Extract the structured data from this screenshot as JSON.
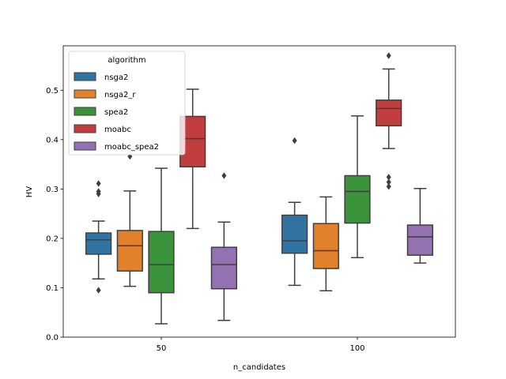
{
  "chart_data": {
    "type": "box",
    "xlabel": "n_candidates",
    "ylabel": "HV",
    "ylim": [
      0.0,
      0.59
    ],
    "yticks": [
      "0.0",
      "0.1",
      "0.2",
      "0.3",
      "0.4",
      "0.5"
    ],
    "categories": [
      "50",
      "100"
    ],
    "legend": {
      "title": "algorithm",
      "placement": "upper-left"
    },
    "series": [
      {
        "name": "nsga2",
        "color": "#3274a1",
        "boxes": [
          {
            "whislo": 0.118,
            "q1": 0.168,
            "med": 0.197,
            "q3": 0.211,
            "whishi": 0.235,
            "fliers": [
              0.311,
              0.295,
              0.29,
              0.095
            ]
          },
          {
            "whislo": 0.105,
            "q1": 0.17,
            "med": 0.195,
            "q3": 0.247,
            "whishi": 0.273,
            "fliers": [
              0.398
            ]
          }
        ]
      },
      {
        "name": "nsga2_r",
        "color": "#e1812c",
        "boxes": [
          {
            "whislo": 0.103,
            "q1": 0.134,
            "med": 0.185,
            "q3": 0.216,
            "whishi": 0.296,
            "fliers": [
              0.366
            ]
          },
          {
            "whislo": 0.094,
            "q1": 0.139,
            "med": 0.175,
            "q3": 0.23,
            "whishi": 0.284,
            "fliers": []
          }
        ]
      },
      {
        "name": "spea2",
        "color": "#3a923a",
        "boxes": [
          {
            "whislo": 0.027,
            "q1": 0.09,
            "med": 0.147,
            "q3": 0.214,
            "whishi": 0.342,
            "fliers": []
          },
          {
            "whislo": 0.161,
            "q1": 0.231,
            "med": 0.295,
            "q3": 0.327,
            "whishi": 0.448,
            "fliers": []
          }
        ]
      },
      {
        "name": "moabc",
        "color": "#c03d3e",
        "boxes": [
          {
            "whislo": 0.22,
            "q1": 0.345,
            "med": 0.402,
            "q3": 0.447,
            "whishi": 0.502,
            "fliers": []
          },
          {
            "whislo": 0.382,
            "q1": 0.428,
            "med": 0.463,
            "q3": 0.48,
            "whishi": 0.543,
            "fliers": [
              0.57,
              0.324,
              0.314,
              0.305
            ]
          }
        ]
      },
      {
        "name": "moabc_spea2",
        "color": "#9372b2",
        "boxes": [
          {
            "whislo": 0.034,
            "q1": 0.098,
            "med": 0.147,
            "q3": 0.182,
            "whishi": 0.233,
            "fliers": [
              0.327
            ]
          },
          {
            "whislo": 0.15,
            "q1": 0.166,
            "med": 0.203,
            "q3": 0.227,
            "whishi": 0.301,
            "fliers": []
          }
        ]
      }
    ]
  }
}
